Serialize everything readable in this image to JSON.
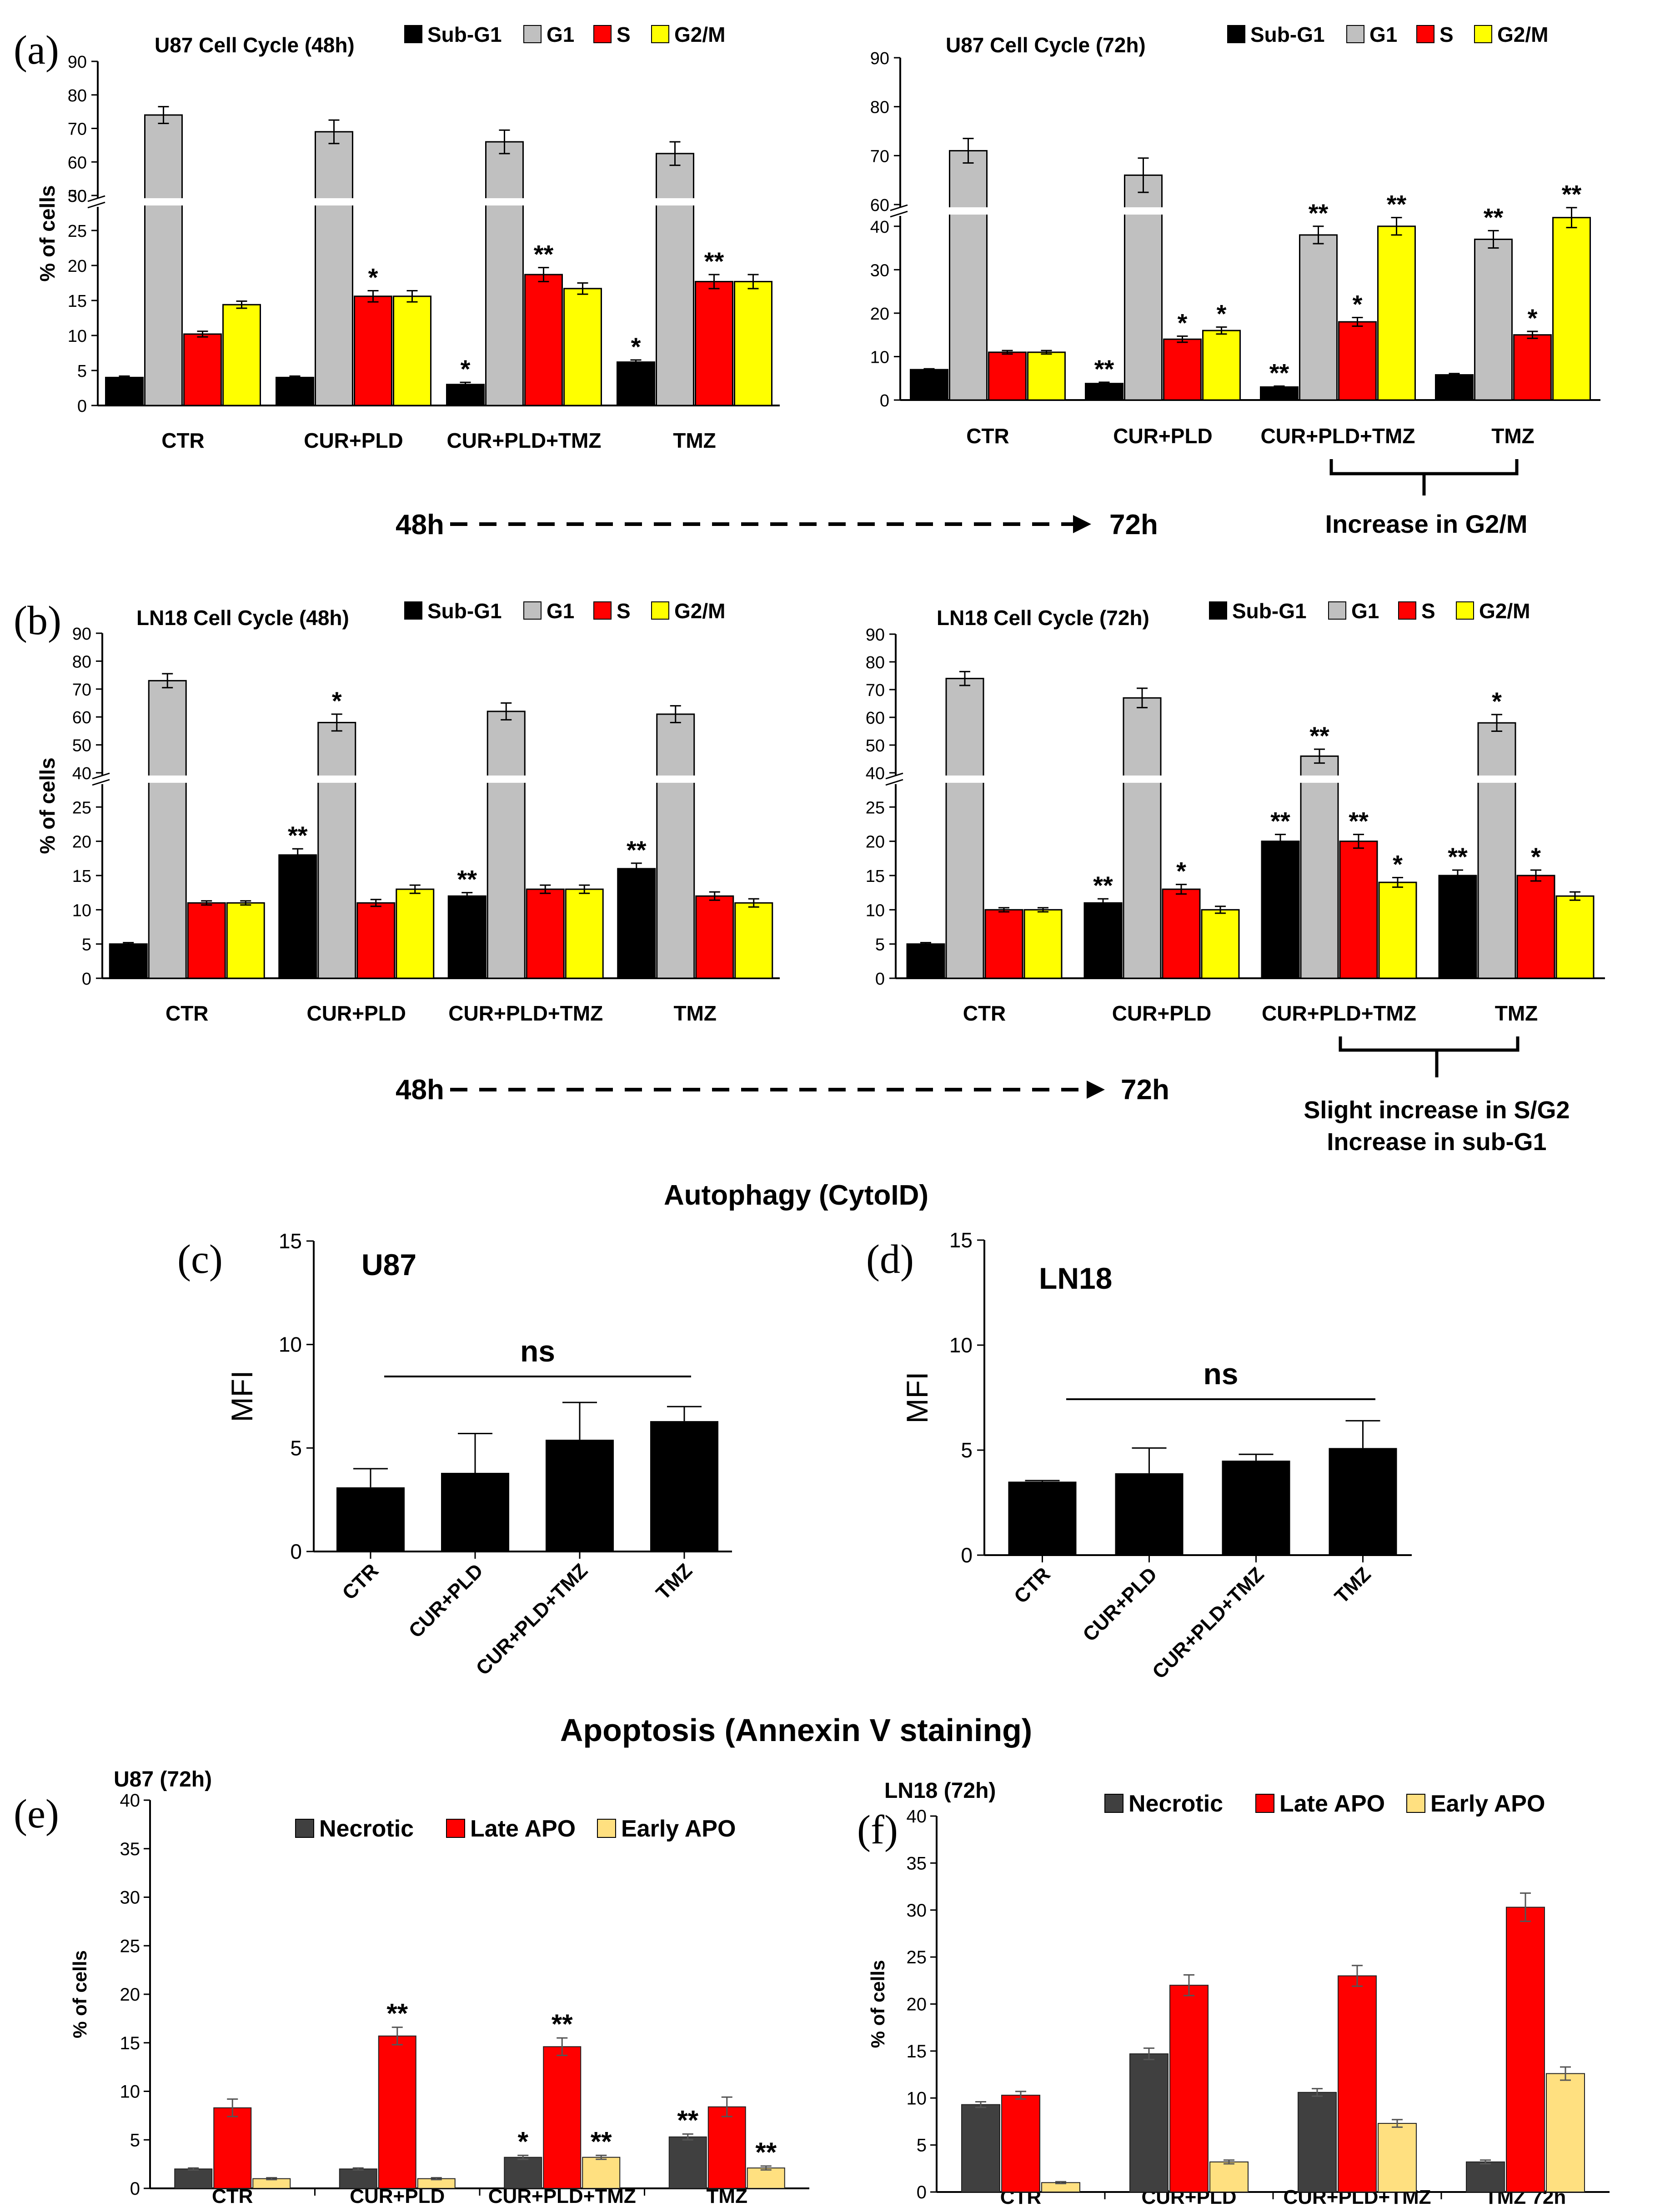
{
  "colors": {
    "subg1": "#000000",
    "g1": "#c0c0c0",
    "s": "#ff0000",
    "g2m": "#ffff00",
    "necrotic": "#404040",
    "late": "#ff0000",
    "early": "#ffe080",
    "mfi_bar": "#000000"
  },
  "headers": {
    "autophagy": "Autophagy (CytoID)",
    "apoptosis": "Apoptosis (Annexin V staining)"
  },
  "arrows": {
    "a": {
      "from": "48h",
      "to": "72h"
    },
    "b": {
      "from": "48h",
      "to": "72h"
    }
  },
  "notes": {
    "a": "Increase in G2/M",
    "b_line1": "Slight increase in S/G2",
    "b_line2": "Increase in sub-G1"
  },
  "chart_data": [
    {
      "id": "a1",
      "panel_label": "(a)",
      "type": "bar",
      "title": "U87 Cell Cycle (48h)",
      "ylabel": "% of cells",
      "ylim": [
        0,
        90
      ],
      "axis_break": [
        30,
        50
      ],
      "yticks_low": [
        0,
        5,
        10,
        15,
        20,
        25,
        30
      ],
      "yticks_high": [
        50,
        60,
        70,
        80,
        90
      ],
      "categories": [
        "CTR",
        "CUR+PLD",
        "CUR+PLD+TMZ",
        "TMZ"
      ],
      "series": [
        {
          "name": "Sub-G1",
          "color_key": "subg1",
          "values": [
            4,
            4,
            3,
            6.2
          ],
          "errors": [
            0.2,
            0.2,
            0.3,
            0.3
          ],
          "marks": [
            "",
            "",
            "*",
            "*"
          ]
        },
        {
          "name": "G1",
          "color_key": "g1",
          "values": [
            74,
            69,
            66,
            62.5
          ],
          "errors": [
            2.5,
            3.5,
            3.5,
            3.5
          ],
          "marks": [
            "",
            "",
            "",
            ""
          ]
        },
        {
          "name": "S",
          "color_key": "s",
          "values": [
            10.2,
            15.6,
            18.7,
            17.7
          ],
          "errors": [
            0.4,
            0.8,
            1,
            1
          ],
          "marks": [
            "",
            "*",
            "**",
            "**"
          ]
        },
        {
          "name": "G2/M",
          "color_key": "g2m",
          "values": [
            14.4,
            15.6,
            16.7,
            17.7
          ],
          "errors": [
            0.5,
            0.8,
            0.8,
            1
          ],
          "marks": [
            "",
            "",
            "",
            ""
          ]
        }
      ]
    },
    {
      "id": "a2",
      "panel_label": "",
      "type": "bar",
      "title": "U87 Cell Cycle (72h)",
      "ylabel": "",
      "ylim": [
        0,
        90
      ],
      "axis_break": [
        45,
        60
      ],
      "yticks_low": [
        0,
        10,
        20,
        30,
        40
      ],
      "yticks_high": [
        60,
        70,
        80,
        90
      ],
      "categories": [
        "CTR",
        "CUR+PLD",
        "CUR+PLD+TMZ",
        "TMZ"
      ],
      "series": [
        {
          "name": "Sub-G1",
          "color_key": "subg1",
          "values": [
            7,
            3.8,
            3,
            5.8
          ],
          "errors": [
            0.2,
            0.3,
            0.2,
            0.3
          ],
          "marks": [
            "",
            "**",
            "**",
            ""
          ]
        },
        {
          "name": "G1",
          "color_key": "g1",
          "values": [
            71,
            66,
            38,
            37
          ],
          "errors": [
            2.5,
            3.5,
            2,
            2
          ],
          "marks": [
            "",
            "",
            "**",
            "**"
          ]
        },
        {
          "name": "S",
          "color_key": "s",
          "values": [
            11,
            14,
            18,
            15
          ],
          "errors": [
            0.4,
            0.7,
            1,
            0.8
          ],
          "marks": [
            "",
            "*",
            "*",
            "*"
          ]
        },
        {
          "name": "G2/M",
          "color_key": "g2m",
          "values": [
            11,
            16,
            40,
            42
          ],
          "errors": [
            0.4,
            0.8,
            2,
            2.3
          ],
          "marks": [
            "",
            "*",
            "**",
            "**"
          ]
        }
      ]
    },
    {
      "id": "b1",
      "panel_label": "(b)",
      "type": "bar",
      "title": "LN18 Cell Cycle (48h)",
      "ylabel": "% of cells",
      "ylim": [
        0,
        90
      ],
      "axis_break": [
        30,
        40
      ],
      "yticks_low": [
        0,
        5,
        10,
        15,
        20,
        25
      ],
      "yticks_high": [
        40,
        50,
        60,
        70,
        80,
        90
      ],
      "categories": [
        "CTR",
        "CUR+PLD",
        "CUR+PLD+TMZ",
        "TMZ"
      ],
      "series": [
        {
          "name": "Sub-G1",
          "color_key": "subg1",
          "values": [
            5,
            18,
            12,
            16
          ],
          "errors": [
            0.2,
            0.9,
            0.5,
            0.8
          ],
          "marks": [
            "",
            "**",
            "**",
            "**"
          ]
        },
        {
          "name": "G1",
          "color_key": "g1",
          "values": [
            73,
            58,
            62,
            61
          ],
          "errors": [
            2.5,
            3,
            3,
            3
          ],
          "marks": [
            "",
            "*",
            "",
            ""
          ]
        },
        {
          "name": "S",
          "color_key": "s",
          "values": [
            11,
            11,
            13,
            12
          ],
          "errors": [
            0.3,
            0.5,
            0.6,
            0.6
          ],
          "marks": [
            "",
            "",
            "",
            ""
          ]
        },
        {
          "name": "G2/M",
          "color_key": "g2m",
          "values": [
            11,
            13,
            13,
            11
          ],
          "errors": [
            0.3,
            0.6,
            0.6,
            0.6
          ],
          "marks": [
            "",
            "",
            "",
            ""
          ]
        }
      ]
    },
    {
      "id": "b2",
      "panel_label": "",
      "type": "bar",
      "title": "LN18 Cell Cycle (72h)",
      "ylabel": "",
      "ylim": [
        0,
        90
      ],
      "axis_break": [
        30,
        40
      ],
      "yticks_low": [
        0,
        5,
        10,
        15,
        20,
        25
      ],
      "yticks_high": [
        40,
        50,
        60,
        70,
        80,
        90
      ],
      "categories": [
        "CTR",
        "CUR+PLD",
        "CUR+PLD+TMZ",
        "TMZ"
      ],
      "series": [
        {
          "name": "Sub-G1",
          "color_key": "subg1",
          "values": [
            5,
            11,
            20,
            15
          ],
          "errors": [
            0.2,
            0.6,
            1,
            0.8
          ],
          "marks": [
            "",
            "**",
            "**",
            "**"
          ]
        },
        {
          "name": "G1",
          "color_key": "g1",
          "values": [
            74,
            67,
            46,
            58
          ],
          "errors": [
            2.5,
            3.5,
            2.5,
            3
          ],
          "marks": [
            "",
            "",
            "**",
            "*"
          ]
        },
        {
          "name": "S",
          "color_key": "s",
          "values": [
            10,
            13,
            20,
            15
          ],
          "errors": [
            0.3,
            0.7,
            1,
            0.8
          ],
          "marks": [
            "",
            "*",
            "**",
            "*"
          ]
        },
        {
          "name": "G2/M",
          "color_key": "g2m",
          "values": [
            10,
            10,
            14,
            12
          ],
          "errors": [
            0.3,
            0.5,
            0.7,
            0.6
          ],
          "marks": [
            "",
            "",
            "*",
            ""
          ]
        }
      ]
    },
    {
      "id": "c",
      "panel_label": "(c)",
      "type": "bar",
      "title": "U87",
      "ylabel": "MFI",
      "ylim": [
        0,
        15
      ],
      "yticks": [
        0,
        5,
        10,
        15
      ],
      "categories": [
        "CTR",
        "CUR+PLD",
        "CUR+PLD+TMZ",
        "TMZ"
      ],
      "values": [
        3.1,
        3.8,
        5.4,
        6.3
      ],
      "errors": [
        0.9,
        1.9,
        1.8,
        0.7
      ],
      "significance": "ns"
    },
    {
      "id": "d",
      "panel_label": "(d)",
      "type": "bar",
      "title": "LN18",
      "ylabel": "MFI",
      "ylim": [
        0,
        15
      ],
      "yticks": [
        0,
        5,
        10,
        15
      ],
      "categories": [
        "CTR",
        "CUR+PLD",
        "CUR+PLD+TMZ",
        "TMZ"
      ],
      "values": [
        3.5,
        3.9,
        4.5,
        5.1
      ],
      "errors": [
        0.05,
        1.2,
        0.3,
        1.3
      ],
      "significance": "ns"
    },
    {
      "id": "e",
      "panel_label": "(e)",
      "type": "bar",
      "title": "U87 (72h)",
      "ylabel": "% of cells",
      "ylim": [
        0,
        40
      ],
      "yticks": [
        0,
        5,
        10,
        15,
        20,
        25,
        30,
        35,
        40
      ],
      "categories": [
        "CTR",
        "CUR+PLD",
        "CUR+PLD+TMZ",
        "TMZ"
      ],
      "series": [
        {
          "name": "Necrotic",
          "color_key": "necrotic",
          "values": [
            2,
            2,
            3.2,
            5.3
          ],
          "errors": [
            0.1,
            0.1,
            0.2,
            0.3
          ],
          "marks": [
            "",
            "",
            "*",
            "**"
          ]
        },
        {
          "name": "Late APO",
          "color_key": "late",
          "values": [
            8.3,
            15.7,
            14.6,
            8.4
          ],
          "errors": [
            0.9,
            0.9,
            0.9,
            1
          ],
          "marks": [
            "",
            "**",
            "**",
            ""
          ]
        },
        {
          "name": "Early APO",
          "color_key": "early",
          "values": [
            1,
            1,
            3.2,
            2.1
          ],
          "errors": [
            0.1,
            0.1,
            0.2,
            0.2
          ],
          "marks": [
            "",
            "",
            "**",
            "**"
          ]
        }
      ]
    },
    {
      "id": "f",
      "panel_label": "(f)",
      "type": "bar",
      "title": "LN18 (72h)",
      "ylabel": "% of cells",
      "ylim": [
        0,
        40
      ],
      "yticks": [
        0,
        5,
        10,
        15,
        20,
        25,
        30,
        35,
        40
      ],
      "categories": [
        "CTR",
        "CUR+PLD",
        "CUR+PLD+TMZ",
        "TMZ 72h"
      ],
      "series": [
        {
          "name": "Necrotic",
          "color_key": "necrotic",
          "values": [
            9.3,
            14.7,
            10.6,
            3.2
          ],
          "errors": [
            0.3,
            0.6,
            0.4,
            0.2
          ],
          "marks": [
            "",
            "",
            "",
            ""
          ]
        },
        {
          "name": "Late APO",
          "color_key": "late",
          "values": [
            10.3,
            22,
            23,
            30.3
          ],
          "errors": [
            0.4,
            1.1,
            1.1,
            1.5
          ],
          "marks": [
            "",
            "",
            "",
            ""
          ]
        },
        {
          "name": "Early APO",
          "color_key": "early",
          "values": [
            1,
            3.2,
            7.3,
            12.6
          ],
          "errors": [
            0.1,
            0.2,
            0.4,
            0.7
          ],
          "marks": [
            "",
            "",
            "",
            ""
          ]
        }
      ]
    }
  ]
}
